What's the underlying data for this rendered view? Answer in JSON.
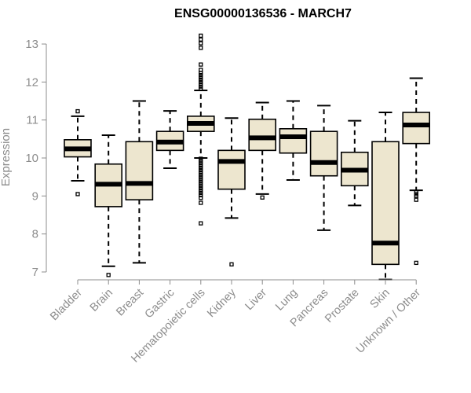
{
  "chart_data": {
    "type": "box",
    "title": "ENSG00000136536 - MARCH7",
    "xlabel": "",
    "ylabel": "Expression",
    "ylim": [
      6.8,
      13.3
    ],
    "yticks": [
      7,
      8,
      9,
      10,
      11,
      12,
      13
    ],
    "grid": false,
    "colors": {
      "box_fill": "#ede6cf",
      "stroke": "#000000",
      "axis_text": "#8c8c8c"
    },
    "categories": [
      "Bladder",
      "Brain",
      "Breast",
      "Gastric",
      "Hematopoietic cells",
      "Kidney",
      "Liver",
      "Lung",
      "Pancreas",
      "Prostate",
      "Skin",
      "Unknown / Other"
    ],
    "boxes": [
      {
        "category": "Bladder",
        "whisker_low": 9.4,
        "q1": 10.03,
        "median": 10.24,
        "q3": 10.48,
        "whisker_high": 11.1,
        "outliers": [
          9.05,
          11.23
        ]
      },
      {
        "category": "Brain",
        "whisker_low": 7.15,
        "q1": 8.72,
        "median": 9.31,
        "q3": 9.84,
        "whisker_high": 10.6,
        "outliers": [
          6.92
        ]
      },
      {
        "category": "Breast",
        "whisker_low": 7.24,
        "q1": 8.9,
        "median": 9.33,
        "q3": 10.43,
        "whisker_high": 11.5,
        "outliers": []
      },
      {
        "category": "Gastric",
        "whisker_low": 9.73,
        "q1": 10.2,
        "median": 10.42,
        "q3": 10.7,
        "whisker_high": 11.24,
        "outliers": []
      },
      {
        "category": "Hematopoietic cells",
        "whisker_low": 10.0,
        "q1": 10.7,
        "median": 10.91,
        "q3": 11.1,
        "whisker_high": 11.78,
        "outliers": [
          8.28,
          8.82,
          8.95,
          9.02,
          9.08,
          9.14,
          9.2,
          9.26,
          9.32,
          9.38,
          9.44,
          9.5,
          9.56,
          9.62,
          9.68,
          9.74,
          9.8,
          9.86,
          9.92,
          9.98,
          11.82,
          11.88,
          11.94,
          12.0,
          12.06,
          12.12,
          12.18,
          12.24,
          12.32,
          12.46,
          12.9,
          13.02,
          13.12,
          13.22
        ]
      },
      {
        "category": "Kidney",
        "whisker_low": 8.42,
        "q1": 9.18,
        "median": 9.91,
        "q3": 10.2,
        "whisker_high": 11.05,
        "outliers": [
          7.2
        ]
      },
      {
        "category": "Liver",
        "whisker_low": 9.05,
        "q1": 10.2,
        "median": 10.53,
        "q3": 11.02,
        "whisker_high": 11.46,
        "outliers": [
          8.96
        ]
      },
      {
        "category": "Lung",
        "whisker_low": 9.42,
        "q1": 10.13,
        "median": 10.56,
        "q3": 10.77,
        "whisker_high": 11.5,
        "outliers": []
      },
      {
        "category": "Pancreas",
        "whisker_low": 8.1,
        "q1": 9.53,
        "median": 9.88,
        "q3": 10.7,
        "whisker_high": 11.38,
        "outliers": []
      },
      {
        "category": "Prostate",
        "whisker_low": 8.75,
        "q1": 9.27,
        "median": 9.68,
        "q3": 10.15,
        "whisker_high": 10.98,
        "outliers": []
      },
      {
        "category": "Skin",
        "whisker_low": 6.8,
        "q1": 7.2,
        "median": 7.76,
        "q3": 10.43,
        "whisker_high": 11.2,
        "outliers": []
      },
      {
        "category": "Unknown / Other",
        "whisker_low": 9.15,
        "q1": 10.38,
        "median": 10.87,
        "q3": 11.2,
        "whisker_high": 12.1,
        "outliers": [
          7.24,
          8.9,
          9.0,
          9.05,
          9.1
        ]
      }
    ]
  }
}
